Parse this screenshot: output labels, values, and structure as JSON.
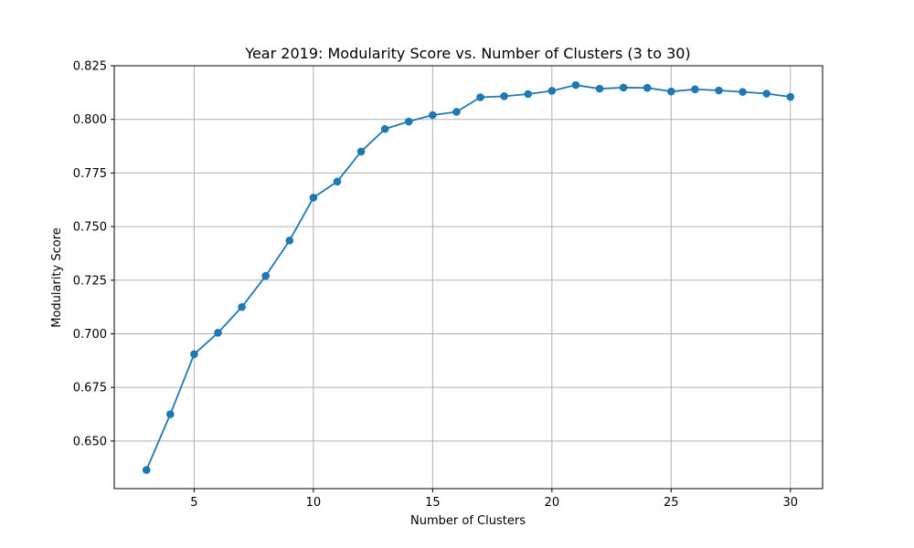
{
  "chart_data": {
    "type": "line",
    "title": "Year 2019: Modularity Score vs. Number of Clusters (3 to 30)",
    "xlabel": "Number of Clusters",
    "ylabel": "Modularity Score",
    "xlim": [
      1.65,
      31.35
    ],
    "ylim": [
      0.6278,
      0.825
    ],
    "xticks": [
      5,
      10,
      15,
      20,
      25,
      30
    ],
    "xtick_labels": [
      "5",
      "10",
      "15",
      "20",
      "25",
      "30"
    ],
    "yticks": [
      0.65,
      0.675,
      0.7,
      0.725,
      0.75,
      0.775,
      0.8,
      0.825
    ],
    "ytick_labels": [
      "0.650",
      "0.675",
      "0.700",
      "0.725",
      "0.750",
      "0.775",
      "0.800",
      "0.825"
    ],
    "grid": true,
    "marker": "circle",
    "color": "#1f77b4",
    "series": [
      {
        "x": [
          3,
          4,
          5,
          6,
          7,
          8,
          9,
          10,
          11,
          12,
          13,
          14,
          15,
          16,
          17,
          18,
          19,
          20,
          21,
          22,
          23,
          24,
          25,
          26,
          27,
          28,
          29,
          30
        ],
        "y": [
          0.6365,
          0.6625,
          0.6905,
          0.7005,
          0.7125,
          0.727,
          0.7435,
          0.7635,
          0.771,
          0.785,
          0.7955,
          0.799,
          0.802,
          0.8035,
          0.8103,
          0.8108,
          0.8118,
          0.8133,
          0.816,
          0.8143,
          0.8148,
          0.8147,
          0.813,
          0.814,
          0.8135,
          0.8128,
          0.812,
          0.8105
        ]
      }
    ]
  }
}
